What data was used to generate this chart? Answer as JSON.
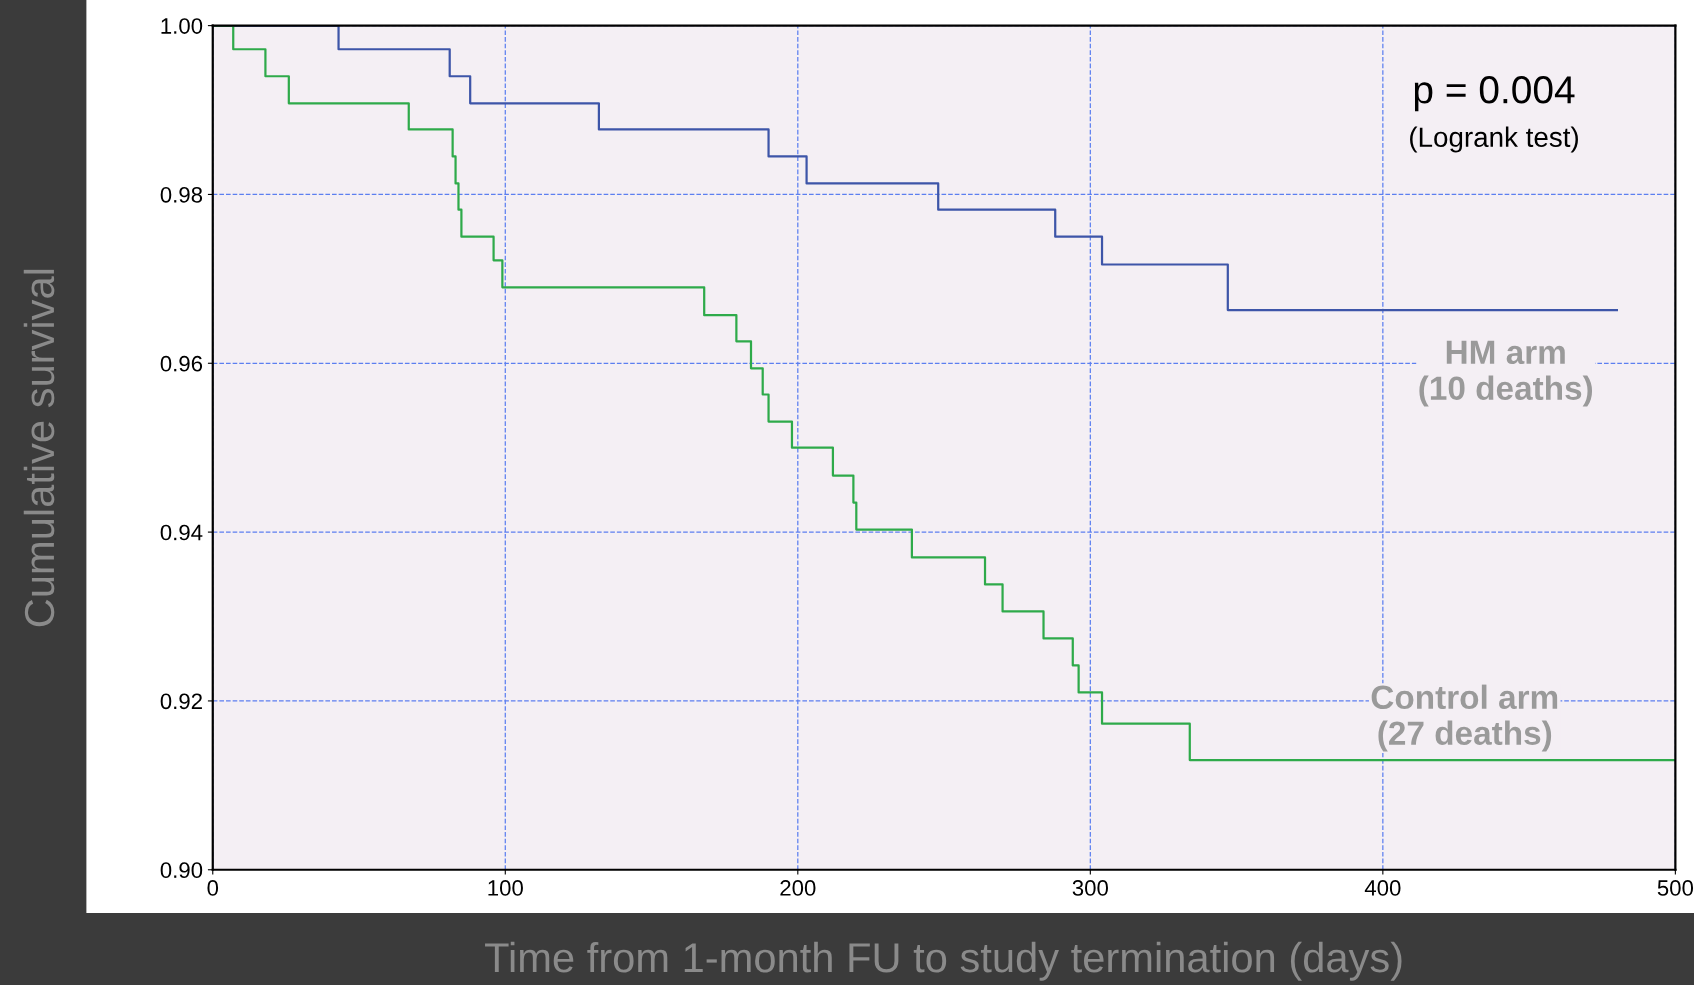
{
  "chart_data": {
    "type": "step",
    "xlabel": "Time from 1-month FU to study termination (days)",
    "ylabel": "Cumulative survival",
    "xlim": [
      0,
      500
    ],
    "xticks": [
      0,
      100,
      200,
      300,
      400,
      500
    ],
    "ylim": [
      0.9,
      1.0
    ],
    "yticks": [
      {
        "value": 0.9,
        "label": "0.90"
      },
      {
        "value": 0.92,
        "label": "0.92"
      },
      {
        "value": 0.94,
        "label": "0.94"
      },
      {
        "value": 0.96,
        "label": "0.96"
      },
      {
        "value": 0.98,
        "label": "0.98"
      },
      {
        "value": 1.0,
        "label": "1.00"
      }
    ],
    "grid": true,
    "legend": false,
    "line_style": "solid",
    "marker": "none",
    "series": [
      {
        "name": "HM arm\n(10 deaths)",
        "color": "#3d55a8",
        "x": [
          0,
          43,
          81,
          88,
          132,
          190,
          203,
          248,
          288,
          304,
          347,
          480
        ],
        "values": [
          1.0,
          0.9972,
          0.994,
          0.9908,
          0.9877,
          0.9845,
          0.9813,
          0.9782,
          0.975,
          0.9717,
          0.9663,
          0.9663
        ]
      },
      {
        "name": "Control arm\n(27 deaths)",
        "color": "#2eaa4a",
        "x": [
          0,
          7,
          18,
          26,
          67,
          82,
          83,
          84,
          85,
          96,
          99,
          168,
          179,
          184,
          188,
          190,
          198,
          212,
          219,
          220,
          239,
          264,
          270,
          284,
          294,
          296,
          304,
          334,
          500
        ],
        "values": [
          1.0,
          0.9972,
          0.994,
          0.9908,
          0.9877,
          0.9845,
          0.9813,
          0.9782,
          0.975,
          0.9722,
          0.969,
          0.9657,
          0.9626,
          0.9594,
          0.9563,
          0.9531,
          0.95,
          0.9467,
          0.9435,
          0.9403,
          0.937,
          0.9338,
          0.9306,
          0.9274,
          0.9242,
          0.921,
          0.9173,
          0.913,
          0.913
        ]
      }
    ],
    "annotations": [
      "p = 0.004",
      "(Logrank test)"
    ]
  }
}
